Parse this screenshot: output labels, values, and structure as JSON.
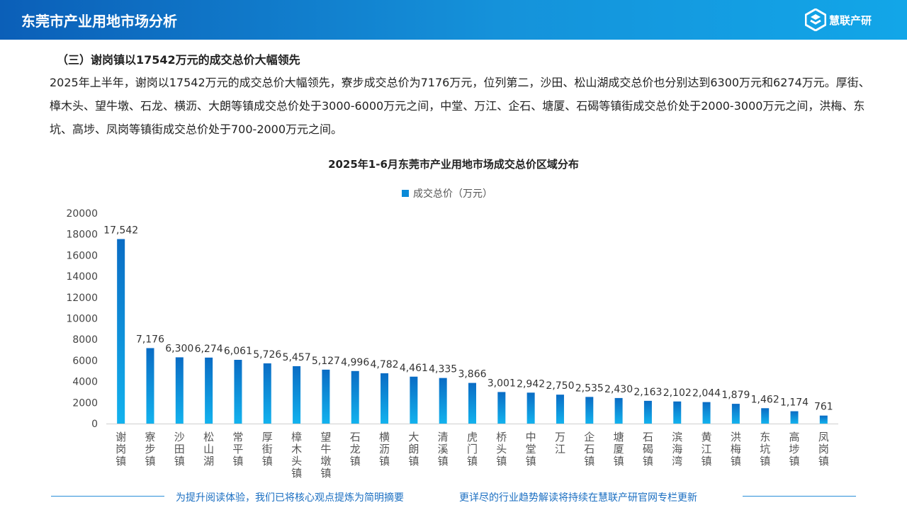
{
  "header": {
    "title": "东莞市产业用地市场分析",
    "logo_text": "慧联产研"
  },
  "section_title": "（三）谢岗镇以17542万元的成交总价大幅领先",
  "paragraph": "2025年上半年，谢岗以17542万元的成交总价大幅领先，寮步成交总价为7176万元，位列第二，沙田、松山湖成交总价也分别达到6300万元和6274万元。厚街、樟木头、望牛墩、石龙、横沥、大朗等镇成交总价处于3000-6000万元之间，中堂、万江、企石、塘厦、石碣等镇街成交总价处于2000-3000万元之间，洪梅、东坑、高埗、凤岗等镇街成交总价处于700-2000万元之间。",
  "footer": {
    "left": "为提升阅读体验，我们已将核心观点提炼为简明摘要",
    "right": "更详尽的行业趋势解读将持续在慧联产研官网专栏更新"
  },
  "colors": {
    "bar_top": "#0a6cc4",
    "bar_bottom": "#12b2ee",
    "header": "#1592da"
  },
  "chart_data": {
    "type": "bar",
    "title": "2025年1-6月东莞市产业用地市场成交总价区域分布",
    "legend_position": "top",
    "ylim": [
      0,
      20000
    ],
    "yticks": [
      "0",
      "2000",
      "4000",
      "6000",
      "8000",
      "10000",
      "12000",
      "14000",
      "16000",
      "18000",
      "20000"
    ],
    "categories": [
      "谢岗镇",
      "寮步镇",
      "沙田镇",
      "松山湖",
      "常平镇",
      "厚街镇",
      "樟木头镇",
      "望牛墩镇",
      "石龙镇",
      "横沥镇",
      "大朗镇",
      "清溪镇",
      "虎门镇",
      "桥头镇",
      "中堂镇",
      "万江",
      "企石镇",
      "塘厦镇",
      "石碣镇",
      "滨海湾",
      "黄江镇",
      "洪梅镇",
      "东坑镇",
      "高埗镇",
      "凤岗镇"
    ],
    "series": [
      {
        "name": "成交总价（万元）",
        "values": [
          17542,
          7176,
          6300,
          6274,
          6061,
          5726,
          5457,
          5127,
          4996,
          4782,
          4461,
          4335,
          3866,
          3001,
          2942,
          2750,
          2535,
          2430,
          2163,
          2102,
          2044,
          1879,
          1462,
          1174,
          761
        ],
        "labels": [
          "17,542",
          "7,176",
          "6,300",
          "6,274",
          "6,061",
          "5,726",
          "5,457",
          "5,127",
          "4,996",
          "4,782",
          "4,461",
          "4,335",
          "3,866",
          "3,001",
          "2,942",
          "2,750",
          "2,535",
          "2,430",
          "2,163",
          "2,102",
          "2,044",
          "1,879",
          "1,462",
          "1,174",
          "761"
        ]
      }
    ]
  }
}
